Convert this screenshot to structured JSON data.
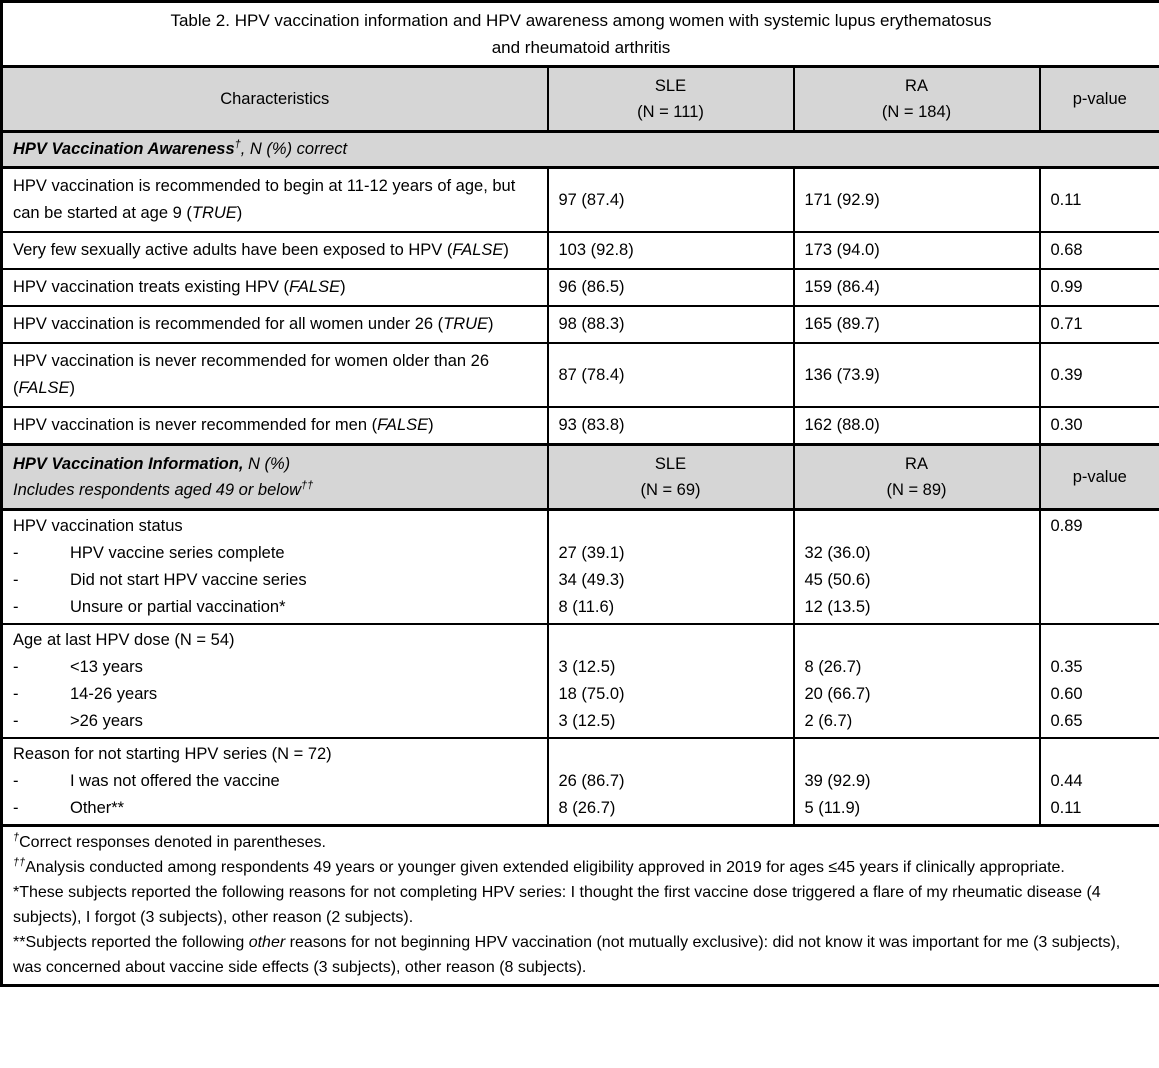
{
  "bullets": {
    "dash": "-"
  },
  "title": {
    "line1": "Table 2. HPV vaccination information and HPV awareness among women with systemic lupus erythematosus",
    "line2": "and rheumatoid arthritis"
  },
  "header": {
    "characteristics": "Characteristics",
    "sle_label": "SLE",
    "sle_n": "(N = 111)",
    "ra_label": "RA",
    "ra_n": "(N = 184)",
    "p_label": "p-value"
  },
  "awareness": {
    "header_title": "HPV Vaccination Awareness",
    "header_sup": "†",
    "header_rest": ", N (%) correct",
    "rows": [
      {
        "label_pre": "HPV vaccination is recommended to begin at 11-12 years of age, but can be started at age 9 (",
        "label_italic": "TRUE",
        "label_post": ")",
        "sle": "97 (87.4)",
        "ra": "171 (92.9)",
        "p": "0.11"
      },
      {
        "label_pre": "Very few sexually active adults have been exposed to HPV (",
        "label_italic": "FALSE",
        "label_post": ")",
        "sle": "103 (92.8)",
        "ra": "173 (94.0)",
        "p": "0.68"
      },
      {
        "label_pre": "HPV vaccination treats existing HPV (",
        "label_italic": "FALSE",
        "label_post": ")",
        "sle": "96 (86.5)",
        "ra": "159 (86.4)",
        "p": "0.99"
      },
      {
        "label_pre": "HPV vaccination is recommended for all women under 26 (",
        "label_italic": "TRUE",
        "label_post": ")",
        "sle": "98 (88.3)",
        "ra": "165 (89.7)",
        "p": "0.71"
      },
      {
        "label_pre": "HPV vaccination is never recommended for women older than 26 (",
        "label_italic": "FALSE",
        "label_post": ")",
        "sle": "87 (78.4)",
        "ra": "136 (73.9)",
        "p": "0.39"
      },
      {
        "label_pre": "HPV vaccination is never recommended for men (",
        "label_italic": "FALSE",
        "label_post": ")",
        "sle": "93 (83.8)",
        "ra": "162 (88.0)",
        "p": "0.30"
      }
    ]
  },
  "information": {
    "header_title": "HPV Vaccination Information,",
    "header_rest": " N (%)",
    "header_line2": "Includes respondents aged 49 or below",
    "header_line2_sup": "††",
    "sle_label": "SLE",
    "sle_n": "(N = 69)",
    "ra_label": "RA",
    "ra_n": "(N = 89)",
    "p_label": "p-value",
    "groups": [
      {
        "label": "HPV vaccination status",
        "p_top": "0.89",
        "items": [
          "HPV vaccine series complete",
          "Did not start HPV vaccine series",
          "Unsure or partial vaccination*"
        ],
        "sle": [
          "27 (39.1)",
          "34 (49.3)",
          "8 (11.6)"
        ],
        "ra": [
          "32 (36.0)",
          "45 (50.6)",
          "12 (13.5)"
        ],
        "p": [
          "",
          "",
          ""
        ]
      },
      {
        "label": "Age at last HPV dose (N = 54)",
        "p_top": "",
        "items": [
          "<13 years",
          "14-26 years",
          ">26 years"
        ],
        "sle": [
          "3 (12.5)",
          "18 (75.0)",
          "3 (12.5)"
        ],
        "ra": [
          "8 (26.7)",
          "20 (66.7)",
          "2 (6.7)"
        ],
        "p": [
          "0.35",
          "0.60",
          "0.65"
        ]
      },
      {
        "label": "Reason for not starting HPV series (N = 72)",
        "p_top": "",
        "items": [
          "I was not offered the vaccine",
          "Other**"
        ],
        "sle": [
          "26 (86.7)",
          "8 (26.7)"
        ],
        "ra": [
          "39 (92.9)",
          "5 (11.9)"
        ],
        "p": [
          "0.44",
          "0.11"
        ]
      }
    ]
  },
  "footnotes": {
    "fn1": {
      "sup": "†",
      "text": "Correct responses denoted in parentheses."
    },
    "fn2": {
      "sup": "††",
      "text": "Analysis conducted among respondents 49 years or younger given extended eligibility approved in 2019 for ages ≤45 years if clinically appropriate."
    },
    "fn3": {
      "text": "*These subjects reported the following reasons for not completing HPV series: I thought the first vaccine dose triggered a flare of my rheumatic disease (4 subjects), I forgot (3 subjects), other reason (2 subjects)."
    },
    "fn4": {
      "pre": "**Subjects reported the following ",
      "italic": "other",
      "post": " reasons for not beginning HPV vaccination (not mutually exclusive): did not know it was important for me (3 subjects), was concerned about vaccine side effects (3 subjects), other reason (8 subjects)."
    }
  }
}
